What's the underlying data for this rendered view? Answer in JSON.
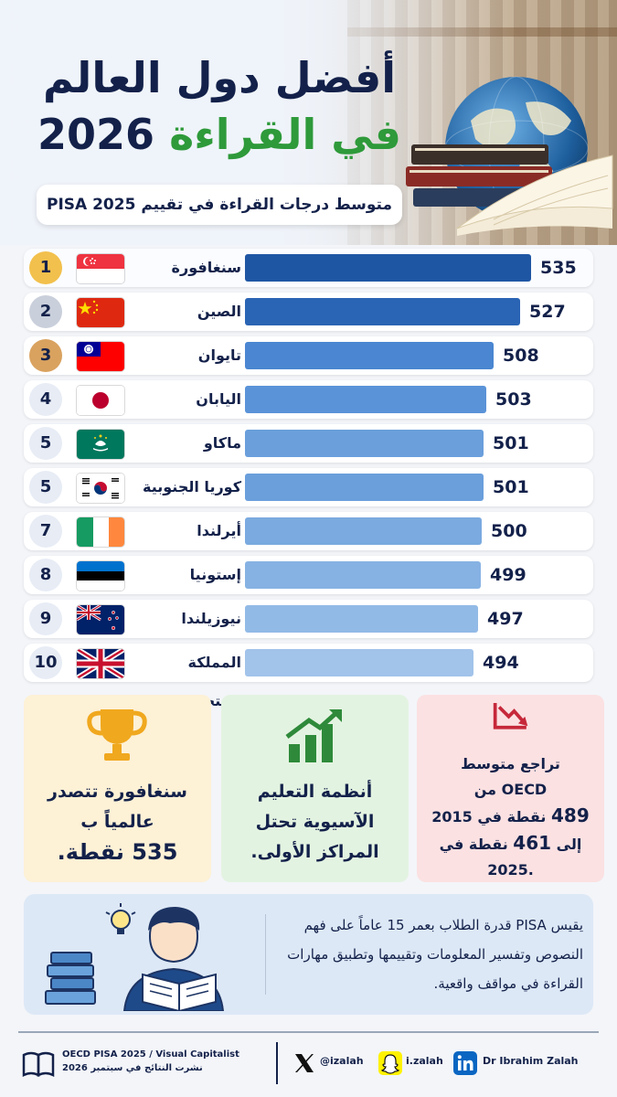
{
  "hero": {
    "title_line1": "أفضل دول العالم",
    "title_line2_green": "في القراءة",
    "title_line2_year": "2026",
    "subtitle": "متوسط درجات القراءة في تقييم PISA 2025"
  },
  "chart_data": {
    "type": "bar",
    "orientation": "horizontal",
    "title": "أفضل دول العالم في القراءة 2026",
    "subtitle": "متوسط درجات القراءة في تقييم PISA 2025",
    "ranks": [
      "1",
      "2",
      "3",
      "4",
      "5",
      "5",
      "7",
      "8",
      "9",
      "10"
    ],
    "categories": [
      "سنغافورة",
      "الصين",
      "تايوان",
      "اليابان",
      "ماكاو",
      "كوريا الجنوبية",
      "أيرلندا",
      "إستونيا",
      "نيوزيلندا",
      "المملكة المتحدة"
    ],
    "values": [
      535,
      527,
      508,
      503,
      501,
      501,
      500,
      499,
      497,
      494
    ],
    "value_labels": [
      "535",
      "527",
      "508",
      "503",
      "501",
      "501",
      "500",
      "499",
      "497",
      "494"
    ],
    "flags": [
      "singapore-flag",
      "china-flag",
      "taiwan-flag",
      "japan-flag",
      "macau-flag",
      "south-korea-flag",
      "ireland-flag",
      "estonia-flag",
      "new-zealand-flag",
      "uk-flag"
    ],
    "bar_colors": [
      "#1f56a3",
      "#2a64b4",
      "#4a86d1",
      "#5a93d8",
      "#6a9fdc",
      "#6a9fdc",
      "#7aaae0",
      "#86b2e3",
      "#92bae6",
      "#a2c3ea"
    ],
    "badge_colors": [
      "#f2c04c",
      "#c9cfdb",
      "#d9a25f",
      "#e7ecf5",
      "#e7ecf5",
      "#e7ecf5",
      "#e7ecf5",
      "#e7ecf5",
      "#e7ecf5",
      "#e7ecf5"
    ],
    "xlim": [
      0,
      535
    ],
    "grid": false,
    "legend": "none"
  },
  "cards": {
    "singapore": {
      "icon": "trophy-icon",
      "line1": "سنغافورة تتصدر",
      "line2": "عالمياً ب",
      "line3": "535 نقطة."
    },
    "asian": {
      "icon": "growth-chart-icon",
      "line1": "أنظمة التعليم",
      "line2": "الآسيوية تحتل",
      "line3": "المراكز الأولى."
    },
    "oecd": {
      "icon": "decline-chart-icon",
      "line1": "تراجع متوسط",
      "line2": "OECD من",
      "line3_num": "489",
      "line3_text": "نقطة في 2015",
      "line4_pre": "إلى",
      "line4_num": "461",
      "line4_text": "نقطة في",
      "line5": ".2025"
    }
  },
  "info": {
    "illustration": "student-reading-illustration",
    "text": "يقيس PISA قدرة الطلاب بعمر 15 عاماً على فهم النصوص وتفسير المعلومات وتقييمها وتطبيق مهارات القراءة في مواقف واقعية."
  },
  "footer": {
    "source_icon": "open-book-icon",
    "source_line1": "OECD PISA 2025 / Visual Capitalist",
    "source_line2": "نشرت النتائج في سبتمبر 2026",
    "x_handle": "@izalah",
    "snapchat_handle": "i.zalah",
    "linkedin_name": "Dr Ibrahim Zalah"
  },
  "colors": {
    "navy": "#13214a",
    "green": "#2e9a3a",
    "bar_dark": "#1f56a3",
    "bar_light": "#a2c3ea",
    "gold": "#f2c04c",
    "red": "#c6283a"
  }
}
